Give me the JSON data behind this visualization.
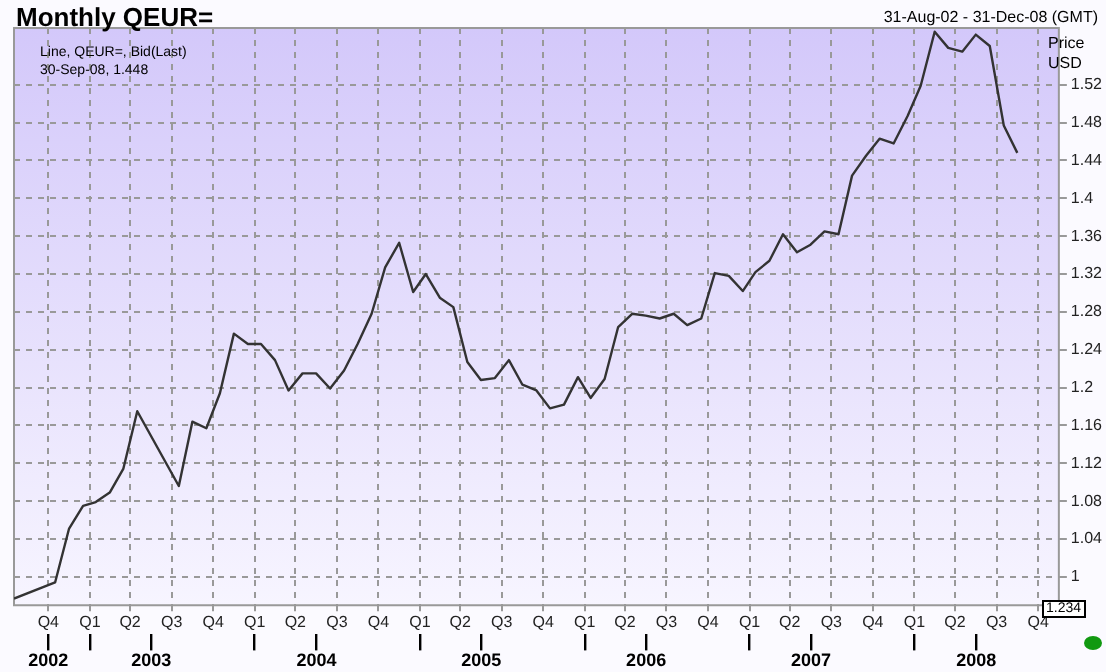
{
  "chart_data": {
    "type": "line",
    "title": "Monthly QEUR=",
    "subtitle": "31-Aug-02 - 31-Dec-08 (GMT)",
    "ylabel": "Price\nUSD",
    "annotations": [
      "Line, QEUR=, Bid(Last)",
      "30-Sep-08, 1.448",
      "1.234"
    ],
    "x": [
      "2002-08-31",
      "2002-11-30",
      "2002-12-31",
      "2003-01-31",
      "2003-02-28",
      "2003-03-31",
      "2003-04-30",
      "2003-05-31",
      "2003-08-31",
      "2003-09-30",
      "2003-10-31",
      "2003-11-30",
      "2003-12-31",
      "2004-01-31",
      "2004-02-29",
      "2004-03-31",
      "2004-04-30",
      "2004-05-31",
      "2004-06-30",
      "2004-07-31",
      "2004-08-31",
      "2004-09-30",
      "2004-10-31",
      "2004-11-30",
      "2004-12-31",
      "2005-01-31",
      "2005-02-28",
      "2005-03-31",
      "2005-04-30",
      "2005-05-31",
      "2005-06-30",
      "2005-07-31",
      "2005-08-31",
      "2005-09-30",
      "2005-10-31",
      "2005-11-30",
      "2005-12-31",
      "2006-01-31",
      "2006-02-28",
      "2006-03-31",
      "2006-04-30",
      "2006-05-31",
      "2006-06-30",
      "2006-07-31",
      "2006-08-31",
      "2006-09-30",
      "2006-10-31",
      "2006-11-30",
      "2006-12-31",
      "2007-01-31",
      "2007-02-28",
      "2007-03-31",
      "2007-04-30",
      "2007-05-31",
      "2007-06-30",
      "2007-07-31",
      "2007-08-31",
      "2007-09-30",
      "2007-10-31",
      "2007-11-30",
      "2007-12-31",
      "2008-01-31",
      "2008-02-29",
      "2008-03-31",
      "2008-04-30",
      "2008-05-31",
      "2008-06-30",
      "2008-07-31",
      "2008-08-31",
      "2008-09-30"
    ],
    "series": [
      {
        "color": "#333333",
        "values": [
          0.977,
          0.994,
          1.051,
          1.075,
          1.079,
          1.089,
          1.114,
          1.175,
          1.096,
          1.164,
          1.157,
          1.194,
          1.257,
          1.246,
          1.246,
          1.229,
          1.197,
          1.215,
          1.215,
          1.199,
          1.218,
          1.246,
          1.278,
          1.327,
          1.353,
          1.301,
          1.32,
          1.295,
          1.285,
          1.227,
          1.208,
          1.21,
          1.229,
          1.203,
          1.197,
          1.178,
          1.182,
          1.211,
          1.189,
          1.209,
          1.264,
          1.278,
          1.276,
          1.273,
          1.278,
          1.266,
          1.273,
          1.321,
          1.318,
          1.302,
          1.322,
          1.334,
          1.362,
          1.343,
          1.351,
          1.365,
          1.362,
          1.424,
          1.445,
          1.463,
          1.458,
          1.487,
          1.519,
          1.576,
          1.559,
          1.555,
          1.573,
          1.561,
          1.477,
          1.448
        ]
      }
    ],
    "xlim": [
      "2002-08-31",
      "2008-12-31"
    ],
    "xticks": [
      {
        "value": "2002-11-15",
        "label": "Q4"
      },
      {
        "value": "2003-02-15",
        "label": "Q1"
      },
      {
        "value": "2003-05-15",
        "label": "Q2"
      },
      {
        "value": "2003-08-15",
        "label": "Q3"
      },
      {
        "value": "2003-11-15",
        "label": "Q4"
      },
      {
        "value": "2004-02-15",
        "label": "Q1"
      },
      {
        "value": "2004-05-15",
        "label": "Q2"
      },
      {
        "value": "2004-08-15",
        "label": "Q3"
      },
      {
        "value": "2004-11-15",
        "label": "Q4"
      },
      {
        "value": "2005-02-15",
        "label": "Q1"
      },
      {
        "value": "2005-05-15",
        "label": "Q2"
      },
      {
        "value": "2005-08-15",
        "label": "Q3"
      },
      {
        "value": "2005-11-15",
        "label": "Q4"
      },
      {
        "value": "2006-02-15",
        "label": "Q1"
      },
      {
        "value": "2006-05-15",
        "label": "Q2"
      },
      {
        "value": "2006-08-15",
        "label": "Q3"
      },
      {
        "value": "2006-11-15",
        "label": "Q4"
      },
      {
        "value": "2007-02-15",
        "label": "Q1"
      },
      {
        "value": "2007-05-15",
        "label": "Q2"
      },
      {
        "value": "2007-08-15",
        "label": "Q3"
      },
      {
        "value": "2007-11-15",
        "label": "Q4"
      },
      {
        "value": "2008-02-15",
        "label": "Q1"
      },
      {
        "value": "2008-05-15",
        "label": "Q2"
      },
      {
        "value": "2008-08-15",
        "label": "Q3"
      },
      {
        "value": "2008-11-15",
        "label": "Q4"
      }
    ],
    "x2lim": [
      "2002-08-31",
      "2008-12-31"
    ],
    "x2ticks": [
      {
        "value": "2002-11-15",
        "label": "2002"
      },
      {
        "value": "2003-02-15",
        "label": null
      },
      {
        "value": "2003-07-01",
        "label": "2003"
      },
      {
        "value": "2004-02-15",
        "label": null
      },
      {
        "value": "2004-07-01",
        "label": "2004"
      },
      {
        "value": "2005-02-15",
        "label": null
      },
      {
        "value": "2005-07-01",
        "label": "2005"
      },
      {
        "value": "2006-02-15",
        "label": null
      },
      {
        "value": "2006-07-01",
        "label": "2006"
      },
      {
        "value": "2007-02-15",
        "label": null
      },
      {
        "value": "2007-07-01",
        "label": "2007"
      },
      {
        "value": "2008-02-15",
        "label": null
      },
      {
        "value": "2008-07-01",
        "label": "2008"
      }
    ],
    "ylim": [
      0.97,
      1.58
    ],
    "yticks": [
      1,
      1.04,
      1.08,
      1.12,
      1.16,
      1.2,
      1.24,
      1.28,
      1.32,
      1.36,
      1.4,
      1.44,
      1.48,
      1.52
    ],
    "grid": true,
    "legend": false,
    "marker": "none",
    "line_style": "solid"
  }
}
